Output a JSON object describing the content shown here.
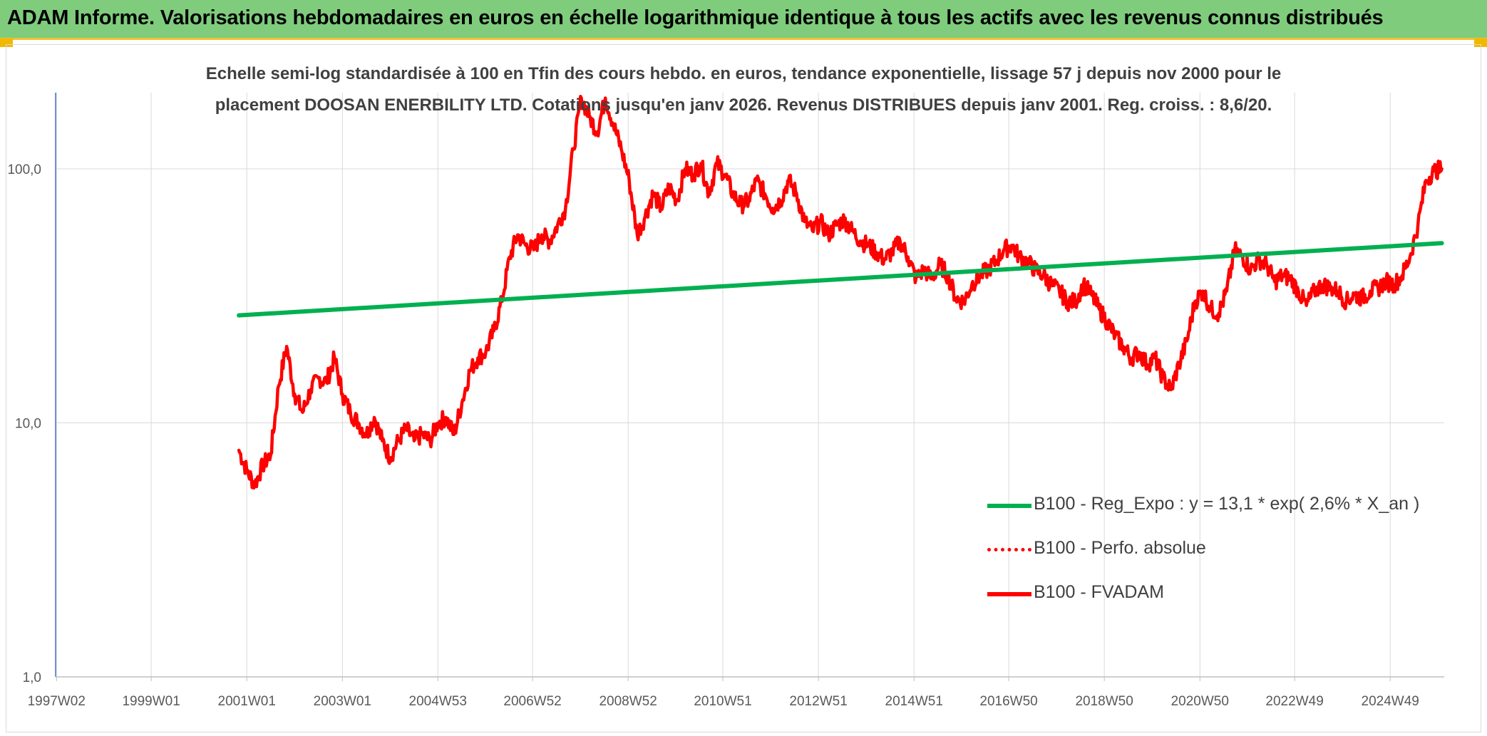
{
  "header": {
    "title": "ADAM Informe. Valorisations hebdomadaires en euros en échelle logarithmique identique à tous les actifs avec les revenus connus distribués"
  },
  "colors": {
    "banner": "#7fcc7d",
    "banner_border": "#f2c12e",
    "fvadam": "#ff0000",
    "regression": "#00b050",
    "perf_absolue": "#ff0000",
    "grid": "#d9d9d9",
    "axis_text": "#595959"
  },
  "chart_data": {
    "type": "line",
    "title_lines": [
      "Echelle semi-log standardisée à 100 en Tfin des cours hebdo. en euros, tendance exponentielle, lissage 57 j depuis nov 2000 pour le",
      "placement DOOSAN ENERBILITY LTD. Cotations jusqu'en janv 2026. Revenus DISTRIBUES depuis janv 2001. Reg. croiss. : 8,6/20."
    ],
    "y_scale": "log",
    "ylim": [
      1,
      200
    ],
    "y_ticks": [
      {
        "value": 1,
        "label": "1,0"
      },
      {
        "value": 10,
        "label": "10,0"
      },
      {
        "value": 100,
        "label": "100,0"
      }
    ],
    "x_axis_range": [
      "1997W02",
      "2026W03"
    ],
    "x_ticks": [
      "1997W02",
      "1999W01",
      "2001W01",
      "2003W01",
      "2004W53",
      "2006W52",
      "2008W52",
      "2010W51",
      "2012W51",
      "2014W51",
      "2016W50",
      "2018W50",
      "2020W50",
      "2022W49",
      "2024W49"
    ],
    "grid": "vertical and horizontal",
    "legend_position": "lower-right",
    "legend": [
      {
        "label": "B100 - Reg_Expo : y = 13,1 * exp( 2,6% *  X_an )",
        "color": "#00b050",
        "style": "solid"
      },
      {
        "label": "B100 - Perfo. absolue",
        "color": "#ff0000",
        "style": "dotted"
      },
      {
        "label": "B100 - FVADAM",
        "color": "#ff0000",
        "style": "solid"
      }
    ],
    "series": [
      {
        "name": "B100 - FVADAM",
        "color": "#ff0000",
        "style": "solid",
        "x": [
          "2000-11",
          "2001-01",
          "2001-03",
          "2001-05",
          "2001-07",
          "2001-09",
          "2001-11",
          "2002-01",
          "2002-03",
          "2002-05",
          "2002-07",
          "2002-09",
          "2002-11",
          "2003-01",
          "2003-03",
          "2003-05",
          "2003-07",
          "2003-09",
          "2003-11",
          "2004-01",
          "2004-03",
          "2004-05",
          "2004-07",
          "2004-09",
          "2004-11",
          "2005-01",
          "2005-03",
          "2005-05",
          "2005-07",
          "2005-09",
          "2005-11",
          "2006-01",
          "2006-03",
          "2006-05",
          "2006-07",
          "2006-09",
          "2006-11",
          "2007-01",
          "2007-03",
          "2007-05",
          "2007-07",
          "2007-09",
          "2007-11",
          "2008-01",
          "2008-03",
          "2008-05",
          "2008-07",
          "2008-09",
          "2008-11",
          "2009-01",
          "2009-03",
          "2009-05",
          "2009-07",
          "2009-09",
          "2009-11",
          "2010-01",
          "2010-03",
          "2010-05",
          "2010-07",
          "2010-09",
          "2010-11",
          "2011-01",
          "2011-03",
          "2011-05",
          "2011-07",
          "2011-09",
          "2011-11",
          "2012-01",
          "2012-03",
          "2012-05",
          "2012-07",
          "2012-09",
          "2012-11",
          "2013-01",
          "2013-03",
          "2013-05",
          "2013-07",
          "2013-09",
          "2013-11",
          "2014-01",
          "2014-03",
          "2014-05",
          "2014-07",
          "2014-09",
          "2014-11",
          "2015-01",
          "2015-03",
          "2015-05",
          "2015-07",
          "2015-09",
          "2015-11",
          "2016-01",
          "2016-03",
          "2016-05",
          "2016-07",
          "2016-09",
          "2016-11",
          "2017-01",
          "2017-03",
          "2017-05",
          "2017-07",
          "2017-09",
          "2017-11",
          "2018-01",
          "2018-03",
          "2018-05",
          "2018-07",
          "2018-09",
          "2018-11",
          "2019-01",
          "2019-03",
          "2019-05",
          "2019-07",
          "2019-09",
          "2019-11",
          "2020-01",
          "2020-03",
          "2020-05",
          "2020-07",
          "2020-09",
          "2020-11",
          "2021-01",
          "2021-03",
          "2021-05",
          "2021-07",
          "2021-09",
          "2021-11",
          "2022-01",
          "2022-03",
          "2022-05",
          "2022-07",
          "2022-09",
          "2022-11",
          "2023-01",
          "2023-03",
          "2023-05",
          "2023-07",
          "2023-09",
          "2023-11",
          "2024-01",
          "2024-03",
          "2024-05",
          "2024-07",
          "2024-09",
          "2024-11",
          "2025-01",
          "2025-03",
          "2025-05",
          "2025-07",
          "2025-09",
          "2025-11",
          "2026-01"
        ],
        "values": [
          7.8,
          6.5,
          5.7,
          6.8,
          7.5,
          14,
          20,
          13,
          11,
          13.5,
          15,
          14.5,
          18,
          13,
          11,
          10,
          9,
          10.5,
          8.5,
          7.3,
          8.5,
          9.5,
          8.5,
          9,
          8.5,
          10,
          10.5,
          9,
          12,
          16,
          18,
          19,
          23,
          30,
          45,
          55,
          50,
          48,
          55,
          52,
          60,
          70,
          120,
          190,
          160,
          140,
          190,
          150,
          120,
          90,
          55,
          65,
          80,
          70,
          85,
          75,
          100,
          95,
          105,
          80,
          105,
          95,
          80,
          72,
          75,
          90,
          80,
          70,
          75,
          90,
          80,
          62,
          57,
          62,
          55,
          60,
          63,
          57,
          52,
          50,
          47,
          44,
          47,
          52,
          45,
          37,
          40,
          37,
          42,
          38,
          31,
          30,
          35,
          38,
          40,
          43,
          48,
          50,
          45,
          43,
          40,
          38,
          35,
          33,
          30,
          30,
          35,
          32,
          28,
          25,
          22,
          20,
          18,
          19,
          17,
          18,
          15,
          13.5,
          17,
          21,
          30,
          33,
          28,
          27,
          33,
          48,
          45,
          40,
          44,
          42,
          36,
          38,
          37,
          33,
          29,
          33,
          35,
          34,
          33,
          30,
          32,
          31,
          33,
          34,
          36,
          35,
          38,
          45,
          60,
          90,
          98,
          100
        ]
      },
      {
        "name": "B100 - Reg_Expo : y = 13,1 * exp( 2,6% *  X_an )",
        "color": "#00b050",
        "style": "solid",
        "x": [
          "2000-11",
          "2026-01"
        ],
        "values": [
          26.5,
          51
        ]
      },
      {
        "name": "B100 - Perfo. absolue",
        "color": "#ff0000",
        "style": "dotted",
        "x": [],
        "values": []
      }
    ]
  }
}
